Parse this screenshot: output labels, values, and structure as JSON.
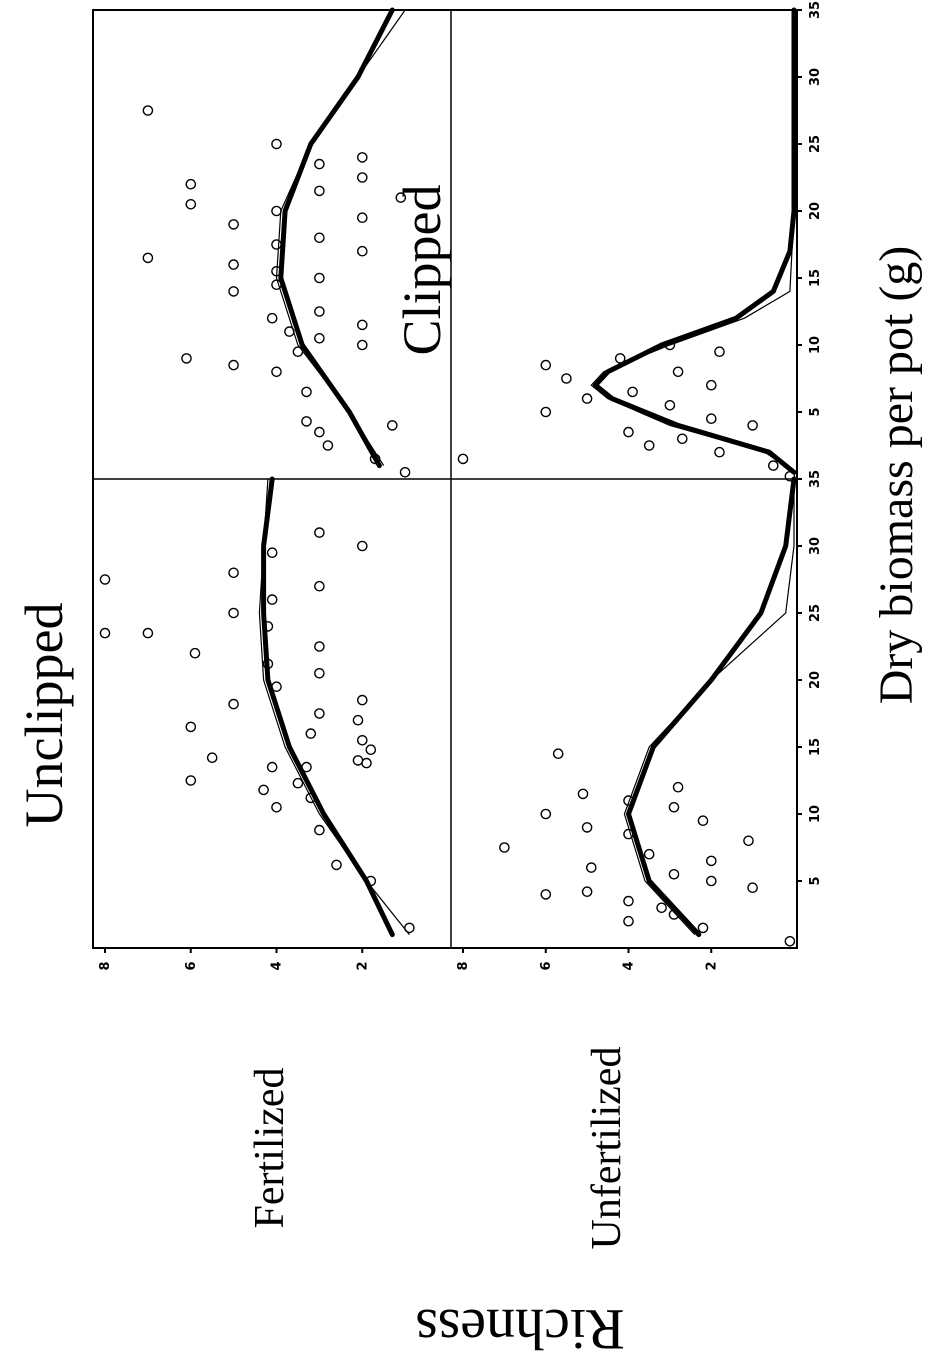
{
  "chart_data": {
    "type": "scatter",
    "xlabel": "Dry biomass per pot (g)",
    "ylabel": "Richness",
    "xlim": [
      0,
      35
    ],
    "ylim": [
      0,
      8
    ],
    "x_ticks": [
      "5",
      "10",
      "15",
      "20",
      "25",
      "30",
      "35"
    ],
    "y_ticks": [
      "2",
      "4",
      "6",
      "8"
    ],
    "column_titles": [
      "Unclipped",
      "Clipped"
    ],
    "row_labels": [
      "Fertilized",
      "Unfertilized"
    ],
    "panels": [
      {
        "row": "Fertilized",
        "column": "Unclipped",
        "points": [
          {
            "x": 1.5,
            "y": 0.9
          },
          {
            "x": 5,
            "y": 1.8
          },
          {
            "x": 6.2,
            "y": 2.6
          },
          {
            "x": 8.8,
            "y": 3.0
          },
          {
            "x": 10.5,
            "y": 4.0
          },
          {
            "x": 11.2,
            "y": 3.2
          },
          {
            "x": 11.8,
            "y": 4.3
          },
          {
            "x": 12.3,
            "y": 3.5
          },
          {
            "x": 12.5,
            "y": 6.0
          },
          {
            "x": 13.5,
            "y": 3.3
          },
          {
            "x": 13.5,
            "y": 4.1
          },
          {
            "x": 13.8,
            "y": 1.9
          },
          {
            "x": 14,
            "y": 2.1
          },
          {
            "x": 14.2,
            "y": 5.5
          },
          {
            "x": 14.8,
            "y": 1.8
          },
          {
            "x": 15.5,
            "y": 2.0
          },
          {
            "x": 16.0,
            "y": 3.2
          },
          {
            "x": 16.5,
            "y": 6.0
          },
          {
            "x": 17,
            "y": 2.1
          },
          {
            "x": 17.5,
            "y": 3.0
          },
          {
            "x": 18.2,
            "y": 5.0
          },
          {
            "x": 18.5,
            "y": 2.0
          },
          {
            "x": 19.5,
            "y": 4.0
          },
          {
            "x": 20.5,
            "y": 3.0
          },
          {
            "x": 21.2,
            "y": 4.2
          },
          {
            "x": 22,
            "y": 5.9
          },
          {
            "x": 22.5,
            "y": 3.0
          },
          {
            "x": 23.5,
            "y": 7.0
          },
          {
            "x": 23.5,
            "y": 8.0
          },
          {
            "x": 24,
            "y": 4.2
          },
          {
            "x": 25,
            "y": 5.0
          },
          {
            "x": 26,
            "y": 4.1
          },
          {
            "x": 27,
            "y": 3.0
          },
          {
            "x": 27.5,
            "y": 8.0
          },
          {
            "x": 28,
            "y": 5.0
          },
          {
            "x": 29.5,
            "y": 4.1
          },
          {
            "x": 30,
            "y": 2.0
          },
          {
            "x": 31,
            "y": 3.0
          }
        ],
        "fit_bold": [
          [
            1,
            1.3
          ],
          [
            5,
            1.9
          ],
          [
            10,
            2.9
          ],
          [
            15,
            3.7
          ],
          [
            20,
            4.2
          ],
          [
            25,
            4.3
          ],
          [
            30,
            4.3
          ],
          [
            35,
            4.1
          ]
        ],
        "fit_thin": [
          [
            1,
            0.9
          ],
          [
            5,
            1.9
          ],
          [
            10,
            3.0
          ],
          [
            15,
            3.8
          ],
          [
            20,
            4.3
          ],
          [
            25,
            4.4
          ],
          [
            30,
            4.3
          ],
          [
            35,
            4.2
          ]
        ]
      },
      {
        "row": "Fertilized",
        "column": "Clipped",
        "points": [
          {
            "x": 0.5,
            "y": 1.0
          },
          {
            "x": 1.5,
            "y": 1.7
          },
          {
            "x": 2.5,
            "y": 2.8
          },
          {
            "x": 3.5,
            "y": 3.0
          },
          {
            "x": 4.0,
            "y": 1.3
          },
          {
            "x": 4.3,
            "y": 3.3
          },
          {
            "x": 6.5,
            "y": 3.3
          },
          {
            "x": 8.0,
            "y": 4.0
          },
          {
            "x": 8.5,
            "y": 5.0
          },
          {
            "x": 9.0,
            "y": 6.1
          },
          {
            "x": 9.5,
            "y": 3.5
          },
          {
            "x": 10,
            "y": 2.0
          },
          {
            "x": 10.5,
            "y": 3.0
          },
          {
            "x": 11,
            "y": 3.7
          },
          {
            "x": 11.5,
            "y": 2.0
          },
          {
            "x": 12,
            "y": 4.1
          },
          {
            "x": 12.5,
            "y": 3.0
          },
          {
            "x": 14,
            "y": 5.0
          },
          {
            "x": 14.5,
            "y": 4.0
          },
          {
            "x": 15,
            "y": 3.0
          },
          {
            "x": 15.5,
            "y": 4.0
          },
          {
            "x": 16,
            "y": 5.0
          },
          {
            "x": 16.5,
            "y": 7.0
          },
          {
            "x": 17,
            "y": 2.0
          },
          {
            "x": 17.5,
            "y": 4.0
          },
          {
            "x": 18,
            "y": 3.0
          },
          {
            "x": 19,
            "y": 5.0
          },
          {
            "x": 19.5,
            "y": 2.0
          },
          {
            "x": 20,
            "y": 4.0
          },
          {
            "x": 20.5,
            "y": 6.0
          },
          {
            "x": 21,
            "y": 1.1
          },
          {
            "x": 21.5,
            "y": 3.0
          },
          {
            "x": 22,
            "y": 6.0
          },
          {
            "x": 22.5,
            "y": 2.0
          },
          {
            "x": 23.5,
            "y": 3.0
          },
          {
            "x": 24,
            "y": 2.0
          },
          {
            "x": 25,
            "y": 4.0
          },
          {
            "x": 27.5,
            "y": 7.0
          }
        ],
        "fit_bold": [
          [
            1,
            1.6
          ],
          [
            5,
            2.3
          ],
          [
            10,
            3.4
          ],
          [
            15,
            3.9
          ],
          [
            20,
            3.8
          ],
          [
            25,
            3.2
          ],
          [
            30,
            2.1
          ],
          [
            35,
            1.3
          ]
        ],
        "fit_thin": [
          [
            1,
            1.5
          ],
          [
            5,
            2.3
          ],
          [
            10,
            3.5
          ],
          [
            15,
            4.0
          ],
          [
            20,
            3.9
          ],
          [
            25,
            3.2
          ],
          [
            30,
            2.1
          ],
          [
            35,
            1.0
          ]
        ]
      },
      {
        "row": "Unfertilized",
        "column": "Unclipped",
        "points": [
          {
            "x": 0.5,
            "y": 0.1
          },
          {
            "x": 1.5,
            "y": 2.2
          },
          {
            "x": 2.0,
            "y": 4.0
          },
          {
            "x": 2.5,
            "y": 2.9
          },
          {
            "x": 3.0,
            "y": 3.2
          },
          {
            "x": 3.5,
            "y": 4.0
          },
          {
            "x": 4.0,
            "y": 6.0
          },
          {
            "x": 4.2,
            "y": 5.0
          },
          {
            "x": 4.5,
            "y": 1.0
          },
          {
            "x": 5.0,
            "y": 2.0
          },
          {
            "x": 5.5,
            "y": 2.9
          },
          {
            "x": 6.0,
            "y": 4.9
          },
          {
            "x": 6.5,
            "y": 2.0
          },
          {
            "x": 7.0,
            "y": 3.5
          },
          {
            "x": 7.5,
            "y": 7.0
          },
          {
            "x": 8.0,
            "y": 1.1
          },
          {
            "x": 8.5,
            "y": 4.0
          },
          {
            "x": 9.0,
            "y": 5.0
          },
          {
            "x": 9.5,
            "y": 2.2
          },
          {
            "x": 10.0,
            "y": 6.0
          },
          {
            "x": 10.5,
            "y": 2.9
          },
          {
            "x": 11.0,
            "y": 4.0
          },
          {
            "x": 11.5,
            "y": 5.1
          },
          {
            "x": 12.0,
            "y": 2.8
          },
          {
            "x": 14.5,
            "y": 5.7
          }
        ],
        "fit_bold": [
          [
            1,
            2.3
          ],
          [
            5,
            3.5
          ],
          [
            10,
            4.0
          ],
          [
            15,
            3.4
          ],
          [
            20,
            2.0
          ],
          [
            25,
            0.8
          ],
          [
            30,
            0.2
          ],
          [
            35,
            0.0
          ]
        ],
        "fit_thin": [
          [
            1,
            2.4
          ],
          [
            5,
            3.6
          ],
          [
            10,
            4.1
          ],
          [
            15,
            3.5
          ],
          [
            20,
            2.0
          ],
          [
            25,
            0.2
          ],
          [
            30,
            0.0
          ],
          [
            35,
            0.0
          ]
        ]
      },
      {
        "row": "Unfertilized",
        "column": "Clipped",
        "points": [
          {
            "x": 0.2,
            "y": 0.1
          },
          {
            "x": 1.0,
            "y": 0.5
          },
          {
            "x": 1.5,
            "y": 8.0
          },
          {
            "x": 2.0,
            "y": 1.8
          },
          {
            "x": 2.5,
            "y": 3.5
          },
          {
            "x": 3.0,
            "y": 2.7
          },
          {
            "x": 3.5,
            "y": 4.0
          },
          {
            "x": 4.0,
            "y": 1.0
          },
          {
            "x": 4.5,
            "y": 2.0
          },
          {
            "x": 5.0,
            "y": 6.0
          },
          {
            "x": 5.5,
            "y": 3.0
          },
          {
            "x": 6.0,
            "y": 5.0
          },
          {
            "x": 6.5,
            "y": 3.9
          },
          {
            "x": 7.0,
            "y": 2.0
          },
          {
            "x": 7.5,
            "y": 5.5
          },
          {
            "x": 8.0,
            "y": 2.8
          },
          {
            "x": 8.5,
            "y": 6.0
          },
          {
            "x": 9.0,
            "y": 4.2
          },
          {
            "x": 9.5,
            "y": 1.8
          },
          {
            "x": 10.0,
            "y": 3.0
          }
        ],
        "fit_bold": [
          [
            0.5,
            0.0
          ],
          [
            2,
            0.6
          ],
          [
            4,
            2.8
          ],
          [
            6,
            4.4
          ],
          [
            7,
            4.8
          ],
          [
            8,
            4.5
          ],
          [
            10,
            3.2
          ],
          [
            12,
            1.4
          ],
          [
            14,
            0.5
          ],
          [
            17,
            0.1
          ],
          [
            20,
            0.0
          ],
          [
            35,
            0.0
          ]
        ],
        "fit_thin": [
          [
            0.5,
            0.0
          ],
          [
            2,
            0.7
          ],
          [
            4,
            3.0
          ],
          [
            6,
            4.5
          ],
          [
            7,
            4.9
          ],
          [
            8,
            4.6
          ],
          [
            10,
            3.0
          ],
          [
            12,
            1.2
          ],
          [
            14,
            0.1
          ],
          [
            20,
            0.0
          ],
          [
            35,
            0.0
          ]
        ]
      }
    ]
  }
}
